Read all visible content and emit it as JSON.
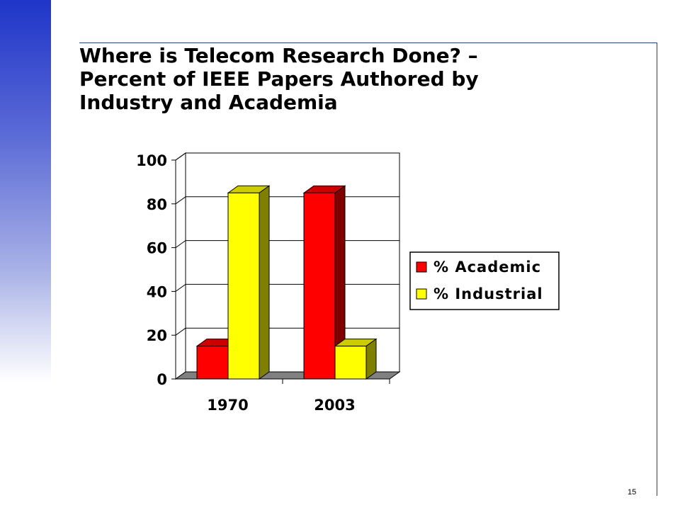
{
  "slide": {
    "title_lines": [
      "Where is Telecom Research Done? –",
      "Percent of IEEE Papers Authored by",
      "Industry and Academia"
    ],
    "page_number": "15"
  },
  "colors": {
    "accent": "#1f35c8",
    "frame": "#1f3aa6",
    "academic": "#ff0000",
    "industrial": "#ffff00"
  },
  "chart_data": {
    "type": "bar",
    "style": "3d-clustered",
    "title": "",
    "xlabel": "",
    "ylabel": "",
    "categories": [
      "1970",
      "2003"
    ],
    "series": [
      {
        "name": "% Academic",
        "values": [
          15,
          85
        ],
        "color": "#ff0000"
      },
      {
        "name": "% Industrial",
        "values": [
          85,
          15
        ],
        "color": "#ffff00"
      }
    ],
    "ylim": [
      0,
      100
    ],
    "yticks": [
      "0",
      "20",
      "40",
      "60",
      "80",
      "100"
    ],
    "grid": true,
    "legend_position": "right"
  }
}
